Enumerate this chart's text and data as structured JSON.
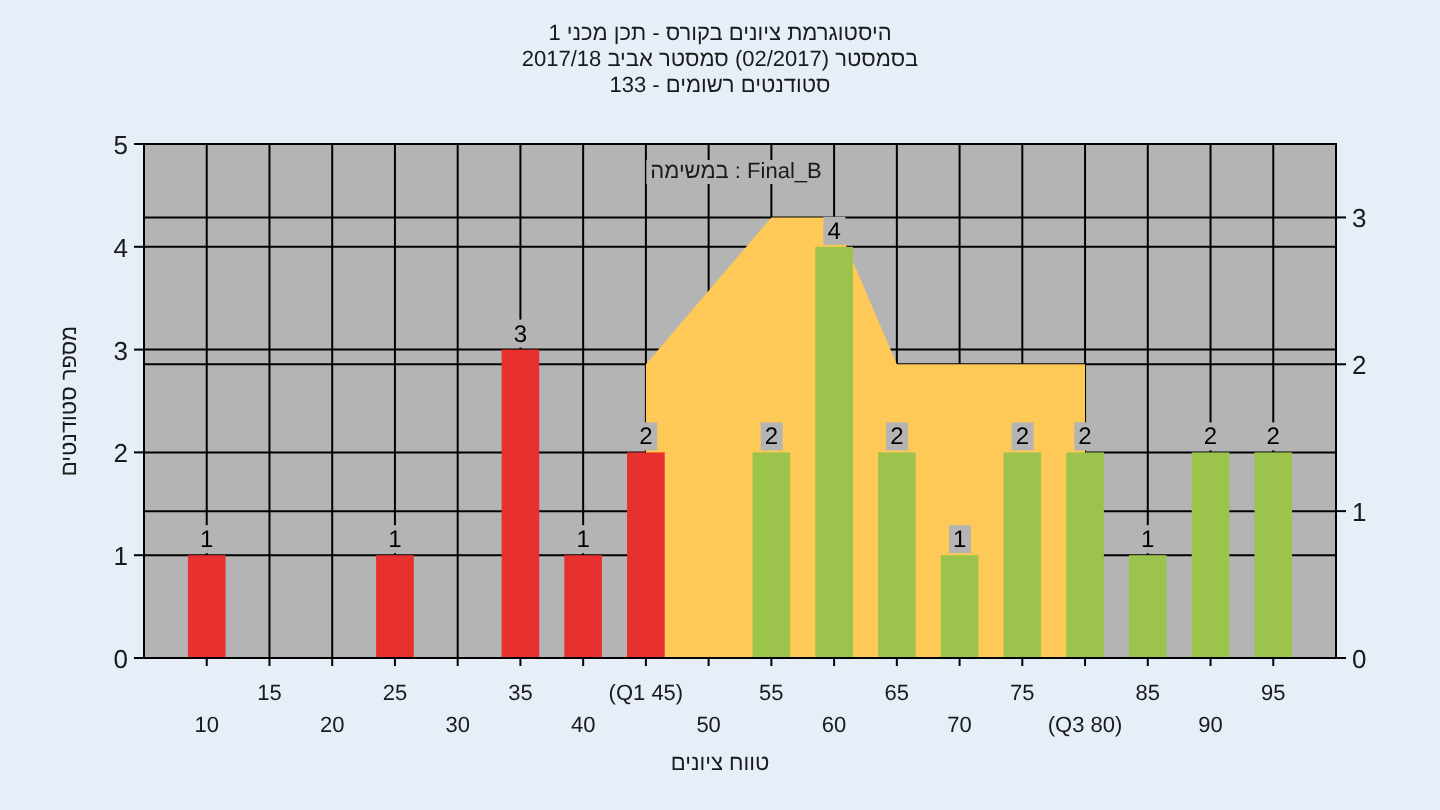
{
  "chart_data": {
    "type": "bar",
    "title": "היסטוגרמת ציונים בקורס - תכן מכני 1",
    "subtitle": "בסמסטר (02/2017) סמסטר אביב 2017/18",
    "xlabel": "טווח ציונים",
    "ylabel": "מספר סטודנטים",
    "annotations": [
      "סטודנטים רשומים - 133",
      "במשימה : Final_B"
    ],
    "categories": [
      "10",
      "15",
      "20",
      "25",
      "30",
      "35",
      "40",
      "(Q1 45)",
      "50",
      "55",
      "60",
      "65",
      "70",
      "75",
      "(Q3 80)",
      "85",
      "90",
      "95"
    ],
    "series": [
      {
        "type": "area",
        "axis": "y2",
        "color": "#ffc957",
        "values": [
          null,
          null,
          null,
          null,
          null,
          null,
          null,
          2,
          2.5,
          3,
          3,
          2,
          2,
          2,
          2,
          null,
          null,
          null
        ]
      },
      {
        "colors": [
          "#e8302f",
          "#e8302f",
          "#e8302f",
          "#e8302f",
          "#e8302f",
          "#e8302f",
          "#e8302f",
          "#e8302f",
          "#9cc44c",
          "#9cc44c",
          "#9cc44c",
          "#9cc44c",
          "#9cc44c",
          "#9cc44c",
          "#9cc44c",
          "#9cc44c",
          "#9cc44c",
          "#9cc44c"
        ],
        "values": [
          1,
          0,
          0,
          1,
          0,
          3,
          1,
          2,
          0,
          2,
          4,
          2,
          1,
          2,
          2,
          1,
          2,
          2
        ],
        "value_labels": [
          "1",
          null,
          null,
          "1",
          null,
          "3",
          "1",
          "2",
          null,
          "2",
          "4",
          "2",
          "1",
          "2",
          "2",
          "1",
          "2",
          "2"
        ]
      }
    ],
    "ylim": [
      0,
      5
    ],
    "yticks": [
      0,
      1,
      2,
      3,
      4,
      5
    ],
    "y2lim": [
      0,
      3.5
    ],
    "y2ticks": [
      0,
      1,
      2,
      3
    ],
    "grid": true
  }
}
